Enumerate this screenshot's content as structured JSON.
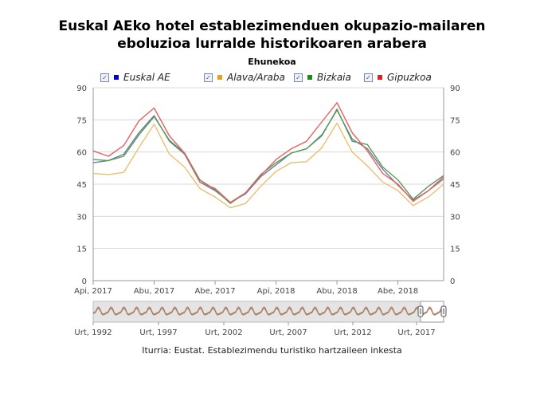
{
  "title_line1": "Euskal AEko hotel establezimenduen okupazio-mailaren",
  "title_line2": "eboluzioa lurralde historikoaren arabera",
  "subtitle": "Ehunekoa",
  "source": "Iturria: Eustat. Establezimendu turistiko hartzaileen inkesta",
  "legend": [
    {
      "name": "Euskal AE",
      "color": "#0000cc",
      "line": "#6a7f9a",
      "checked": "✓"
    },
    {
      "name": "Alava/Araba",
      "color": "#e8a020",
      "line": "#e8c070",
      "checked": "✓"
    },
    {
      "name": "Bizkaia",
      "color": "#1e8a1e",
      "line": "#5a9a5a",
      "checked": "✓"
    },
    {
      "name": "Gipuzkoa",
      "color": "#dd2020",
      "line": "#e86060",
      "checked": "✓"
    }
  ],
  "navigator_labels": [
    "Urt, 1992",
    "Urt, 1997",
    "Urt, 2002",
    "Urt, 2007",
    "Urt, 2012",
    "Urt, 2017"
  ],
  "chart_data": {
    "type": "line",
    "y_ticks": [
      0,
      15,
      30,
      45,
      60,
      75,
      90
    ],
    "ylim": [
      0,
      90
    ],
    "x_tick_labels": [
      "Api, 2017",
      "Abu, 2017",
      "Abe, 2017",
      "Api, 2018",
      "Abu, 2018",
      "Abe, 2018"
    ],
    "x_tick_index": [
      0,
      4,
      8,
      12,
      16,
      20
    ],
    "grid": true,
    "legend_position": "top",
    "series": [
      {
        "name": "Alava/Araba",
        "values": [
          50,
          49.5,
          50.5,
          62,
          73,
          59,
          53,
          43,
          39,
          34,
          36,
          44,
          51,
          55,
          55.5,
          62,
          73.5,
          60,
          53.5,
          46,
          42,
          35,
          39,
          45
        ]
      },
      {
        "name": "Euskal AE",
        "values": [
          55,
          56,
          59,
          69,
          77,
          65,
          59,
          46,
          42,
          36.5,
          40.5,
          48.5,
          54,
          59.5,
          61.5,
          68,
          79.5,
          66,
          61.5,
          52,
          44.5,
          37.5,
          42,
          47.5
        ]
      },
      {
        "name": "Bizkaia",
        "values": [
          56.5,
          56,
          58,
          68,
          76.5,
          65.5,
          59.5,
          47,
          42.5,
          36,
          41,
          49.5,
          55,
          59.5,
          61.5,
          67.5,
          80,
          65,
          63.5,
          53,
          47,
          38,
          44,
          49
        ]
      },
      {
        "name": "Gipuzkoa",
        "values": [
          60.5,
          58,
          63,
          74.5,
          80.5,
          67.5,
          59.5,
          46,
          43,
          36.5,
          41,
          49,
          56.5,
          61.5,
          65,
          74,
          83,
          69,
          60.5,
          50,
          45,
          37,
          42,
          48.5
        ]
      }
    ]
  }
}
